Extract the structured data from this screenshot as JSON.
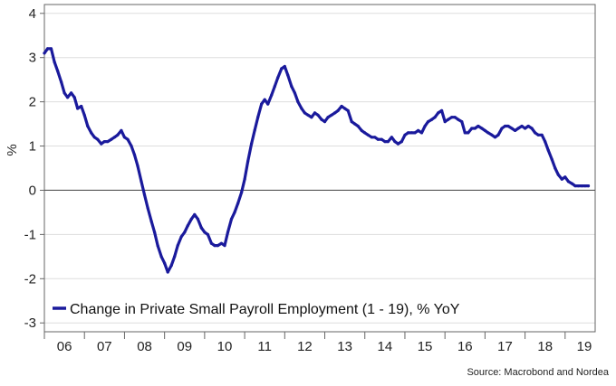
{
  "chart_data": {
    "type": "line",
    "title": "",
    "xlabel": "",
    "ylabel": "%",
    "ylim": [
      -3.2,
      4.2
    ],
    "xlim": [
      2006.0,
      2019.75
    ],
    "yticks": [
      4,
      3,
      2,
      1,
      0,
      -1,
      -2,
      -3
    ],
    "xticks": [
      "06",
      "07",
      "08",
      "09",
      "10",
      "11",
      "12",
      "13",
      "14",
      "15",
      "16",
      "17",
      "18",
      "19"
    ],
    "grid": true,
    "legend_position": "bottom-left",
    "colors": {
      "series": "#1a1a9c",
      "grid": "#dddddd",
      "zero_line": "#555555",
      "frame": "#666666"
    },
    "source": "Source: Macrobond and Nordea",
    "series": [
      {
        "name": "Change in Private Small Payroll Employment (1 - 19), % YoY",
        "x": [
          2006.0,
          2006.08,
          2006.17,
          2006.25,
          2006.33,
          2006.42,
          2006.5,
          2006.58,
          2006.67,
          2006.75,
          2006.83,
          2006.92,
          2007.0,
          2007.08,
          2007.17,
          2007.25,
          2007.33,
          2007.42,
          2007.5,
          2007.58,
          2007.67,
          2007.75,
          2007.83,
          2007.92,
          2008.0,
          2008.08,
          2008.17,
          2008.25,
          2008.33,
          2008.42,
          2008.5,
          2008.58,
          2008.67,
          2008.75,
          2008.83,
          2008.92,
          2009.0,
          2009.08,
          2009.17,
          2009.25,
          2009.33,
          2009.42,
          2009.5,
          2009.58,
          2009.67,
          2009.75,
          2009.83,
          2009.92,
          2010.0,
          2010.08,
          2010.17,
          2010.25,
          2010.33,
          2010.42,
          2010.5,
          2010.58,
          2010.67,
          2010.75,
          2010.83,
          2010.92,
          2011.0,
          2011.08,
          2011.17,
          2011.25,
          2011.33,
          2011.42,
          2011.5,
          2011.58,
          2011.67,
          2011.75,
          2011.83,
          2011.92,
          2012.0,
          2012.08,
          2012.17,
          2012.25,
          2012.33,
          2012.42,
          2012.5,
          2012.58,
          2012.67,
          2012.75,
          2012.83,
          2012.92,
          2013.0,
          2013.08,
          2013.17,
          2013.25,
          2013.33,
          2013.42,
          2013.5,
          2013.58,
          2013.67,
          2013.75,
          2013.83,
          2013.92,
          2014.0,
          2014.08,
          2014.17,
          2014.25,
          2014.33,
          2014.42,
          2014.5,
          2014.58,
          2014.67,
          2014.75,
          2014.83,
          2014.92,
          2015.0,
          2015.08,
          2015.17,
          2015.25,
          2015.33,
          2015.42,
          2015.5,
          2015.58,
          2015.67,
          2015.75,
          2015.83,
          2015.92,
          2016.0,
          2016.08,
          2016.17,
          2016.25,
          2016.33,
          2016.42,
          2016.5,
          2016.58,
          2016.67,
          2016.75,
          2016.83,
          2016.92,
          2017.0,
          2017.08,
          2017.17,
          2017.25,
          2017.33,
          2017.42,
          2017.5,
          2017.58,
          2017.67,
          2017.75,
          2017.83,
          2017.92,
          2018.0,
          2018.08,
          2018.17,
          2018.25,
          2018.33,
          2018.42,
          2018.5,
          2018.58,
          2018.67,
          2018.75,
          2018.83,
          2018.92,
          2019.0,
          2019.08,
          2019.17,
          2019.25,
          2019.33,
          2019.42,
          2019.5,
          2019.58
        ],
        "values": [
          3.1,
          3.2,
          3.2,
          2.9,
          2.7,
          2.45,
          2.2,
          2.1,
          2.2,
          2.1,
          1.85,
          1.9,
          1.7,
          1.45,
          1.3,
          1.2,
          1.15,
          1.05,
          1.1,
          1.1,
          1.15,
          1.2,
          1.25,
          1.35,
          1.2,
          1.15,
          1.0,
          0.8,
          0.55,
          0.2,
          -0.1,
          -0.4,
          -0.7,
          -0.95,
          -1.25,
          -1.5,
          -1.65,
          -1.85,
          -1.7,
          -1.5,
          -1.25,
          -1.05,
          -0.95,
          -0.8,
          -0.65,
          -0.55,
          -0.65,
          -0.85,
          -0.95,
          -1.0,
          -1.2,
          -1.25,
          -1.25,
          -1.2,
          -1.25,
          -0.95,
          -0.65,
          -0.5,
          -0.3,
          -0.05,
          0.25,
          0.65,
          1.05,
          1.35,
          1.65,
          1.95,
          2.05,
          1.95,
          2.15,
          2.35,
          2.55,
          2.75,
          2.8,
          2.6,
          2.35,
          2.2,
          2.0,
          1.85,
          1.75,
          1.7,
          1.65,
          1.75,
          1.7,
          1.6,
          1.55,
          1.65,
          1.7,
          1.75,
          1.8,
          1.9,
          1.85,
          1.8,
          1.55,
          1.5,
          1.45,
          1.35,
          1.3,
          1.25,
          1.2,
          1.2,
          1.15,
          1.15,
          1.1,
          1.1,
          1.2,
          1.1,
          1.05,
          1.1,
          1.25,
          1.3,
          1.3,
          1.3,
          1.35,
          1.3,
          1.45,
          1.55,
          1.6,
          1.65,
          1.75,
          1.8,
          1.55,
          1.6,
          1.65,
          1.65,
          1.6,
          1.55,
          1.3,
          1.3,
          1.4,
          1.4,
          1.45,
          1.4,
          1.35,
          1.3,
          1.25,
          1.2,
          1.25,
          1.4,
          1.45,
          1.45,
          1.4,
          1.35,
          1.4,
          1.45,
          1.4,
          1.45,
          1.4,
          1.3,
          1.25,
          1.25,
          1.1,
          0.9,
          0.7,
          0.5,
          0.35,
          0.25,
          0.3,
          0.2,
          0.15,
          0.1,
          0.1,
          0.1,
          0.1,
          0.1
        ]
      }
    ]
  }
}
